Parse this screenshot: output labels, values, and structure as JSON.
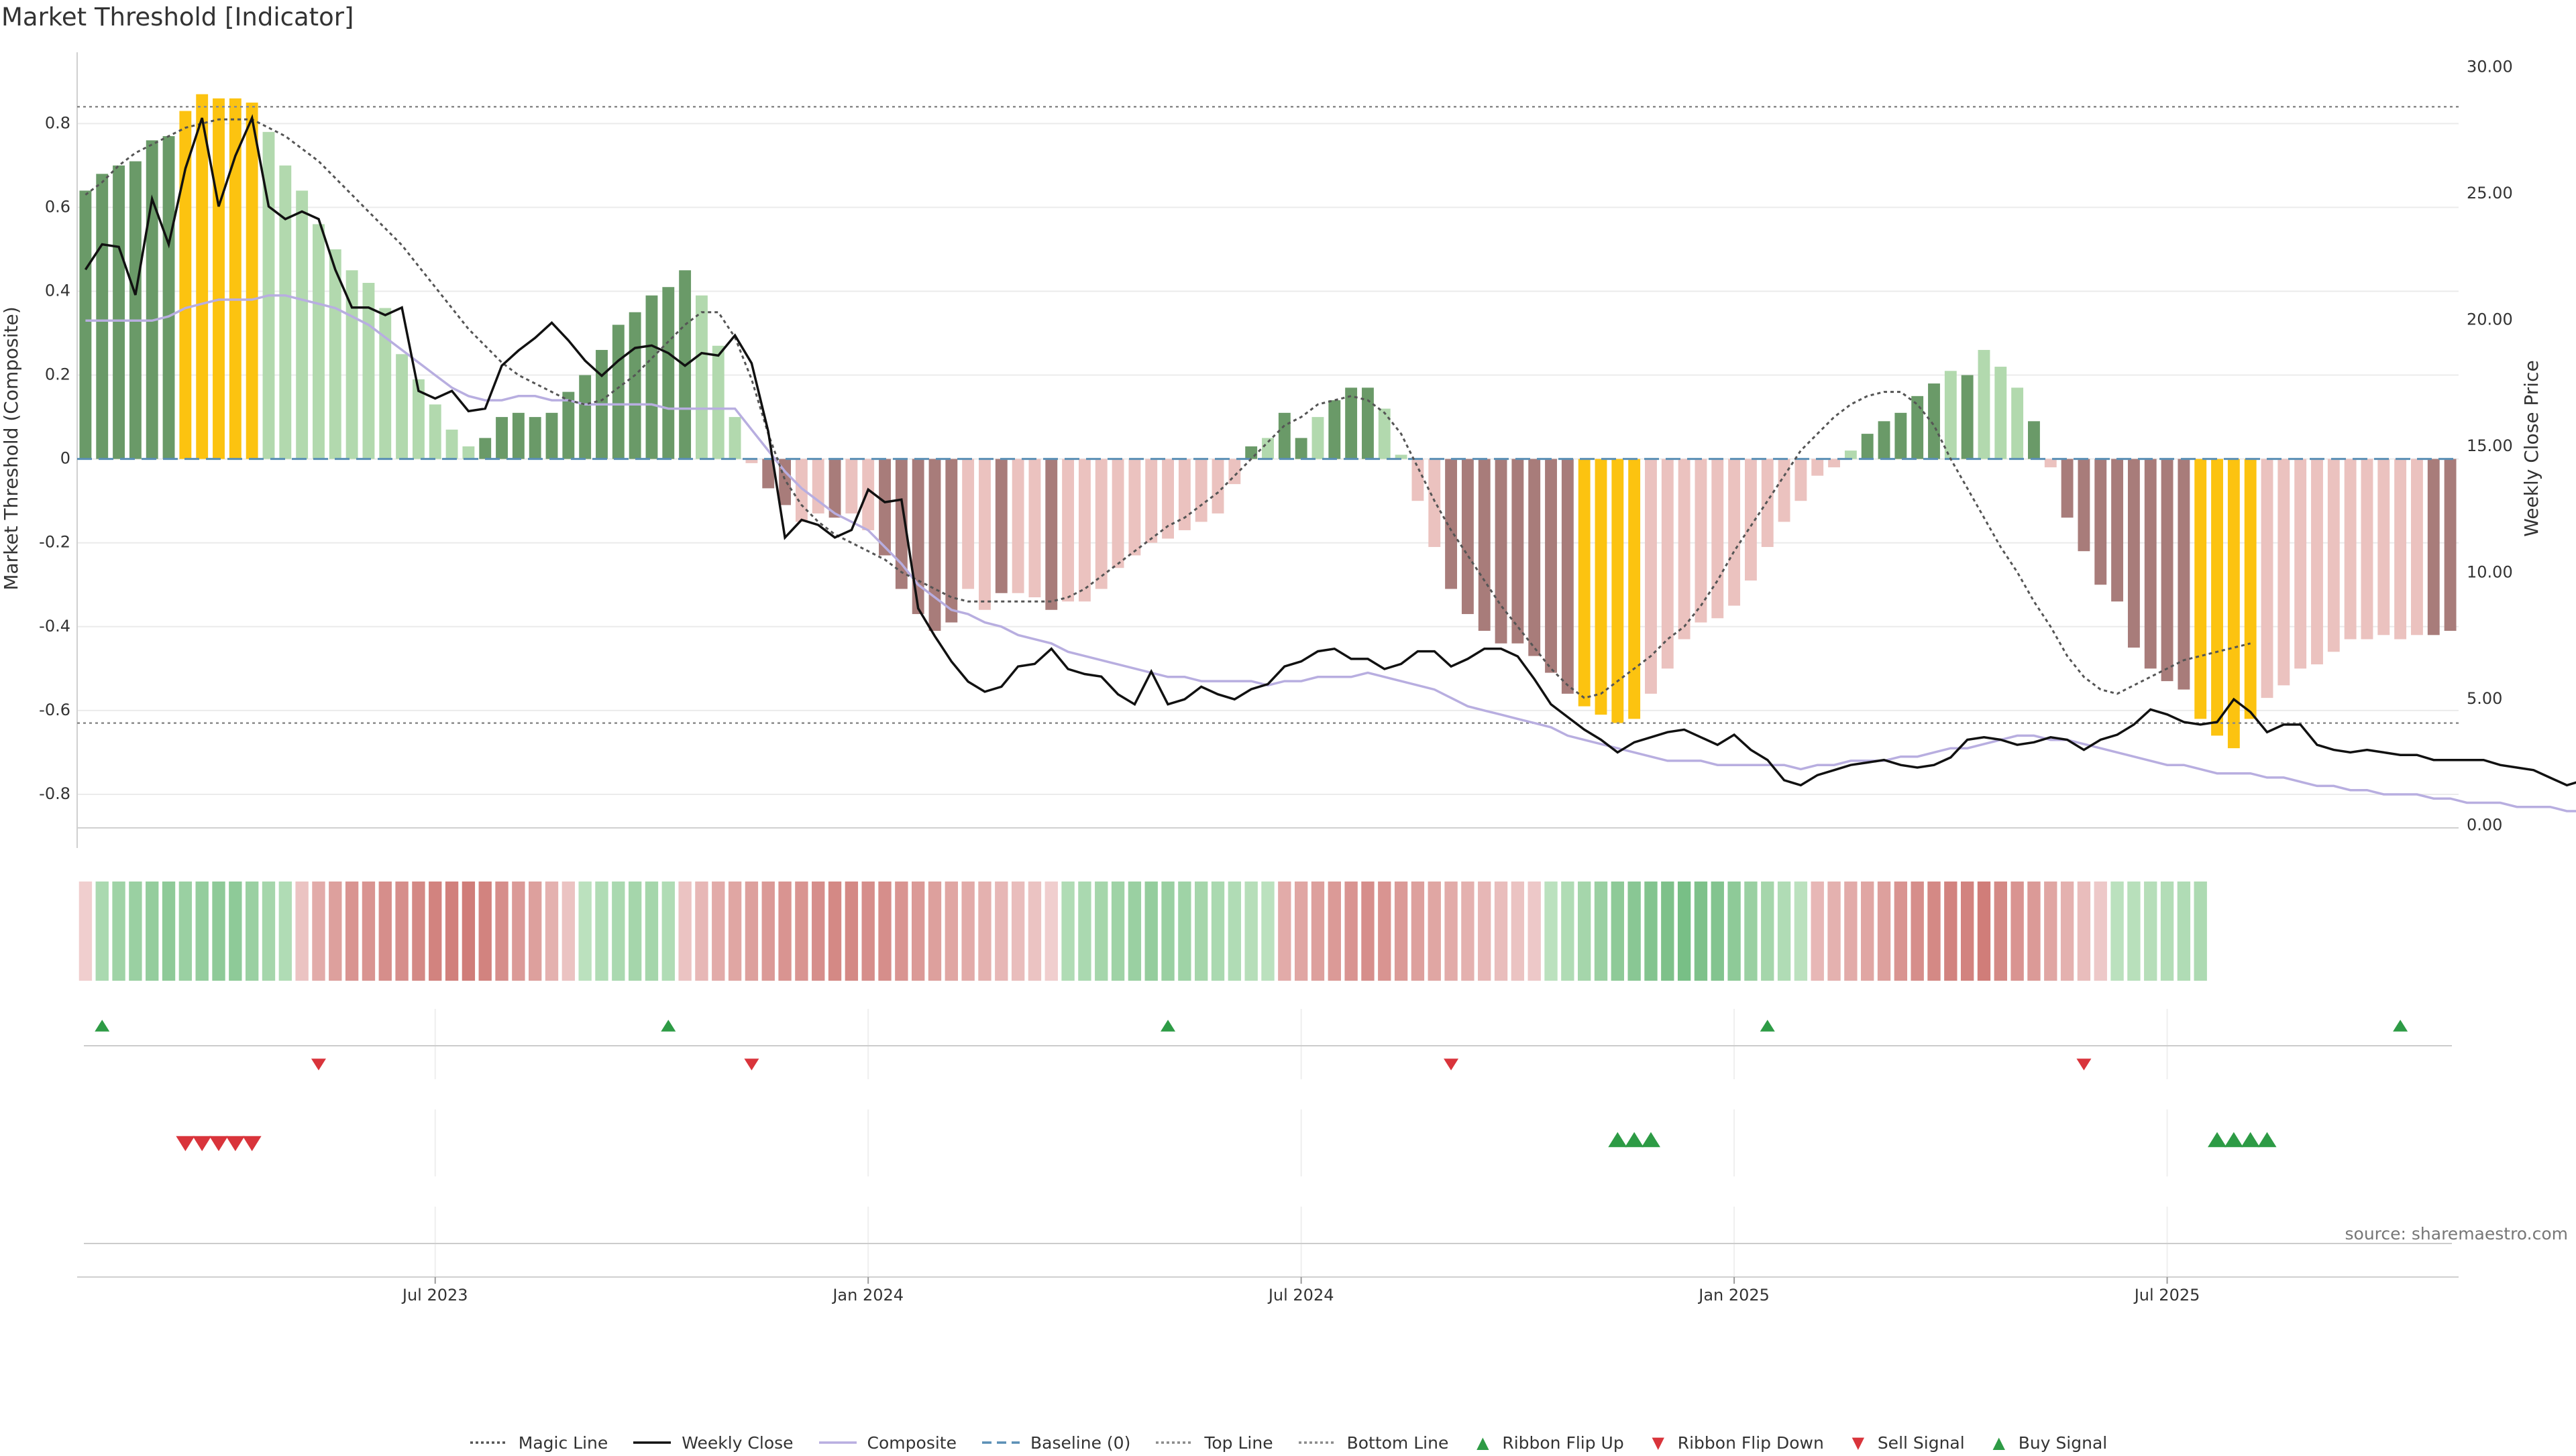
{
  "chart_data": {
    "type": "bar",
    "title": "Market Threshold [Indicator]",
    "ylabel": "Market Threshold (Composite)",
    "y2label": "Weekly Close Price",
    "ylim": [
      -0.92,
      0.97
    ],
    "y2lim": [
      -0.75,
      30.6
    ],
    "yticks": [
      {
        "v": 0.8,
        "l": "0.8"
      },
      {
        "v": 0.6,
        "l": "0.6"
      },
      {
        "v": 0.4,
        "l": "0.4"
      },
      {
        "v": 0.2,
        "l": "0.2"
      },
      {
        "v": 0,
        "l": "0"
      },
      {
        "v": -0.2,
        "l": "-0.2"
      },
      {
        "v": -0.4,
        "l": "-0.4"
      },
      {
        "v": -0.6,
        "l": "-0.6"
      },
      {
        "v": -0.8,
        "l": "-0.8"
      }
    ],
    "y2ticks": [
      {
        "v": 30,
        "l": "30.00"
      },
      {
        "v": 25,
        "l": "25.00"
      },
      {
        "v": 20,
        "l": "20.00"
      },
      {
        "v": 15,
        "l": "15.00"
      },
      {
        "v": 10,
        "l": "10.00"
      },
      {
        "v": 5,
        "l": "5.00"
      },
      {
        "v": 0,
        "l": "0.00"
      }
    ],
    "xticks": [
      {
        "i": 21.5,
        "l": "Jul 2023"
      },
      {
        "i": 47.5,
        "l": "Jan 2024"
      },
      {
        "i": 73.5,
        "l": "Jul 2024"
      },
      {
        "i": 99.5,
        "l": "Jan 2025"
      },
      {
        "i": 125.5,
        "l": "Jul 2025"
      }
    ],
    "top_line": 0.84,
    "bottom_line": -0.63,
    "baseline": 0,
    "colors": {
      "strong_pos": "#6a9a68",
      "weak_pos": "#b2d9ae",
      "strong_neg": "#a87c7a",
      "weak_neg": "#ebc2bf",
      "extreme": "#fcc310",
      "close": "#111111",
      "composite": "#b8aee0",
      "magic": "#555555",
      "baseline": "#5a8fb5",
      "ref": "#8a8a8a",
      "up": "#2d9b45",
      "down": "#d9343b"
    },
    "series": [
      {
        "name": "Composite Bars",
        "kind": "bar",
        "values": [
          0.64,
          0.68,
          0.7,
          0.71,
          0.76,
          0.77,
          0.83,
          0.87,
          0.86,
          0.86,
          0.85,
          0.78,
          0.7,
          0.64,
          0.56,
          0.5,
          0.45,
          0.42,
          0.36,
          0.25,
          0.19,
          0.13,
          0.07,
          0.03,
          0.05,
          0.1,
          0.11,
          0.1,
          0.11,
          0.16,
          0.2,
          0.26,
          0.32,
          0.35,
          0.39,
          0.41,
          0.45,
          0.39,
          0.27,
          0.1,
          -0.01,
          -0.07,
          -0.11,
          -0.15,
          -0.13,
          -0.14,
          -0.13,
          -0.17,
          -0.23,
          -0.31,
          -0.37,
          -0.41,
          -0.39,
          -0.31,
          -0.36,
          -0.32,
          -0.32,
          -0.33,
          -0.36,
          -0.34,
          -0.34,
          -0.31,
          -0.26,
          -0.23,
          -0.2,
          -0.19,
          -0.17,
          -0.15,
          -0.13,
          -0.06,
          0.03,
          0.05,
          0.11,
          0.05,
          0.1,
          0.14,
          0.17,
          0.17,
          0.12,
          0.01,
          -0.1,
          -0.21,
          -0.31,
          -0.37,
          -0.41,
          -0.44,
          -0.44,
          -0.47,
          -0.51,
          -0.56,
          -0.59,
          -0.61,
          -0.63,
          -0.62,
          -0.56,
          -0.5,
          -0.43,
          -0.39,
          -0.38,
          -0.35,
          -0.29,
          -0.21,
          -0.15,
          -0.1,
          -0.04,
          -0.02,
          0.02,
          0.06,
          0.09,
          0.11,
          0.15,
          0.18,
          0.21,
          0.2,
          0.26,
          0.22,
          0.17,
          0.09,
          -0.02,
          -0.14,
          -0.22,
          -0.3,
          -0.34,
          -0.45,
          -0.5,
          -0.53,
          -0.55,
          -0.62,
          -0.66,
          -0.69,
          -0.62,
          -0.57,
          -0.54,
          -0.5,
          -0.49,
          -0.46,
          -0.43,
          -0.43,
          -0.42,
          -0.43,
          -0.42,
          -0.42,
          -0.41
        ]
      },
      {
        "name": "Weekly Close",
        "kind": "line",
        "values": [
          22.0,
          23.0,
          22.9,
          21.0,
          24.8,
          23.0,
          26.0,
          28.0,
          24.5,
          26.5,
          28.0,
          24.5,
          24.0,
          24.3,
          24.0,
          22.0,
          20.5,
          20.5,
          20.2,
          20.5,
          17.2,
          16.9,
          17.2,
          16.4,
          16.5,
          18.2,
          18.8,
          19.3,
          19.9,
          19.2,
          18.4,
          17.8,
          18.4,
          18.9,
          19.0,
          18.7,
          18.2,
          18.7,
          18.6,
          19.4,
          18.3,
          15.6,
          11.4,
          12.1,
          11.9,
          11.4,
          11.7,
          13.3,
          12.8,
          12.9,
          8.6,
          7.5,
          6.5,
          5.7,
          5.3,
          5.5,
          6.3,
          6.4,
          7.0,
          6.2,
          6.0,
          5.9,
          5.2,
          4.8,
          6.1,
          4.8,
          5.0,
          5.5,
          5.2,
          5.0,
          5.4,
          5.6,
          6.3,
          6.5,
          6.9,
          7.0,
          6.6,
          6.6,
          6.2,
          6.4,
          6.9,
          6.9,
          6.3,
          6.6,
          7.0,
          7.0,
          6.7,
          5.8,
          4.8,
          4.3,
          3.8,
          3.4,
          2.9,
          3.3,
          3.5,
          3.7,
          3.8,
          3.5,
          3.2,
          3.6,
          3.0,
          2.6,
          1.8,
          1.6,
          2.0,
          2.2,
          2.4,
          2.5,
          2.6,
          2.4,
          2.3,
          2.4,
          2.7,
          3.4,
          3.5,
          3.4,
          3.2,
          3.3,
          3.5,
          3.4,
          3.0,
          3.4,
          3.6,
          4.0,
          4.6,
          4.4,
          4.1,
          4.0,
          4.1,
          5.0,
          4.5,
          3.7,
          4.0,
          4.0,
          3.2,
          3.0,
          2.9,
          3.0,
          2.9,
          2.8,
          2.8,
          2.6,
          2.6,
          2.6,
          2.6,
          2.4,
          2.3,
          2.2,
          1.9,
          1.6,
          1.8,
          2.0
        ]
      },
      {
        "name": "Composite",
        "kind": "line",
        "values": [
          0.33,
          0.33,
          0.33,
          0.33,
          0.33,
          0.34,
          0.36,
          0.37,
          0.38,
          0.38,
          0.38,
          0.39,
          0.39,
          0.38,
          0.37,
          0.36,
          0.34,
          0.32,
          0.29,
          0.26,
          0.23,
          0.2,
          0.17,
          0.15,
          0.14,
          0.14,
          0.15,
          0.15,
          0.14,
          0.14,
          0.13,
          0.13,
          0.13,
          0.13,
          0.13,
          0.12,
          0.12,
          0.12,
          0.12,
          0.12,
          0.07,
          0.02,
          -0.03,
          -0.07,
          -0.1,
          -0.13,
          -0.15,
          -0.17,
          -0.21,
          -0.25,
          -0.3,
          -0.33,
          -0.36,
          -0.37,
          -0.39,
          -0.4,
          -0.42,
          -0.43,
          -0.44,
          -0.46,
          -0.47,
          -0.48,
          -0.49,
          -0.5,
          -0.51,
          -0.52,
          -0.52,
          -0.53,
          -0.53,
          -0.53,
          -0.53,
          -0.54,
          -0.53,
          -0.53,
          -0.52,
          -0.52,
          -0.52,
          -0.51,
          -0.52,
          -0.53,
          -0.54,
          -0.55,
          -0.57,
          -0.59,
          -0.6,
          -0.61,
          -0.62,
          -0.63,
          -0.64,
          -0.66,
          -0.67,
          -0.68,
          -0.69,
          -0.7,
          -0.71,
          -0.72,
          -0.72,
          -0.72,
          -0.73,
          -0.73,
          -0.73,
          -0.73,
          -0.73,
          -0.74,
          -0.73,
          -0.73,
          -0.72,
          -0.72,
          -0.72,
          -0.71,
          -0.71,
          -0.7,
          -0.69,
          -0.69,
          -0.68,
          -0.67,
          -0.66,
          -0.66,
          -0.67,
          -0.67,
          -0.68,
          -0.69,
          -0.7,
          -0.71,
          -0.72,
          -0.73,
          -0.73,
          -0.74,
          -0.75,
          -0.75,
          -0.75,
          -0.76,
          -0.76,
          -0.77,
          -0.78,
          -0.78,
          -0.79,
          -0.79,
          -0.8,
          -0.8,
          -0.8,
          -0.81,
          -0.81,
          -0.82,
          -0.82,
          -0.82,
          -0.83,
          -0.83,
          -0.83,
          -0.84,
          -0.84,
          -0.85,
          -0.85
        ]
      },
      {
        "name": "Magic Line",
        "kind": "line",
        "values": [
          0.63,
          0.66,
          0.7,
          0.73,
          0.75,
          0.77,
          0.79,
          0.8,
          0.81,
          0.81,
          0.81,
          0.79,
          0.77,
          0.74,
          0.71,
          0.67,
          0.63,
          0.59,
          0.55,
          0.51,
          0.46,
          0.41,
          0.36,
          0.31,
          0.27,
          0.23,
          0.2,
          0.18,
          0.16,
          0.14,
          0.13,
          0.14,
          0.17,
          0.2,
          0.24,
          0.28,
          0.32,
          0.35,
          0.35,
          0.29,
          0.19,
          0.06,
          -0.05,
          -0.11,
          -0.15,
          -0.18,
          -0.2,
          -0.22,
          -0.24,
          -0.27,
          -0.29,
          -0.31,
          -0.33,
          -0.34,
          -0.34,
          -0.34,
          -0.34,
          -0.34,
          -0.34,
          -0.33,
          -0.31,
          -0.28,
          -0.25,
          -0.22,
          -0.19,
          -0.16,
          -0.14,
          -0.11,
          -0.08,
          -0.04,
          0.0,
          0.04,
          0.08,
          0.1,
          0.13,
          0.14,
          0.15,
          0.14,
          0.11,
          0.06,
          -0.02,
          -0.1,
          -0.17,
          -0.23,
          -0.29,
          -0.35,
          -0.4,
          -0.45,
          -0.5,
          -0.54,
          -0.57,
          -0.56,
          -0.53,
          -0.5,
          -0.47,
          -0.43,
          -0.4,
          -0.35,
          -0.29,
          -0.22,
          -0.16,
          -0.1,
          -0.04,
          0.02,
          0.06,
          0.1,
          0.13,
          0.15,
          0.16,
          0.16,
          0.13,
          0.08,
          0.0,
          -0.07,
          -0.14,
          -0.21,
          -0.27,
          -0.34,
          -0.4,
          -0.47,
          -0.52,
          -0.55,
          -0.56,
          -0.54,
          -0.52,
          -0.5,
          -0.48,
          -0.47,
          -0.46,
          -0.45,
          -0.44
        ]
      },
      {
        "name": "Ribbon",
        "kind": "ribbon",
        "values": [
          -0.05,
          0.3,
          0.4,
          0.45,
          0.5,
          0.55,
          0.45,
          0.5,
          0.55,
          0.55,
          0.45,
          0.35,
          0.25,
          -0.15,
          -0.35,
          -0.45,
          -0.55,
          -0.55,
          -0.6,
          -0.6,
          -0.65,
          -0.7,
          -0.72,
          -0.75,
          -0.7,
          -0.6,
          -0.5,
          -0.45,
          -0.3,
          -0.15,
          0.15,
          0.25,
          0.3,
          0.35,
          0.35,
          0.25,
          -0.15,
          -0.25,
          -0.35,
          -0.4,
          -0.45,
          -0.5,
          -0.55,
          -0.55,
          -0.6,
          -0.65,
          -0.65,
          -0.6,
          -0.6,
          -0.55,
          -0.5,
          -0.45,
          -0.4,
          -0.35,
          -0.3,
          -0.25,
          -0.2,
          -0.15,
          -0.05,
          0.25,
          0.3,
          0.35,
          0.4,
          0.45,
          0.5,
          0.45,
          0.4,
          0.35,
          0.3,
          0.25,
          0.2,
          0.15,
          -0.35,
          -0.4,
          -0.45,
          -0.5,
          -0.55,
          -0.6,
          -0.55,
          -0.5,
          -0.45,
          -0.4,
          -0.35,
          -0.3,
          -0.25,
          -0.2,
          -0.15,
          -0.1,
          0.15,
          0.25,
          0.35,
          0.45,
          0.55,
          0.6,
          0.65,
          0.7,
          0.75,
          0.7,
          0.65,
          0.55,
          0.45,
          0.35,
          0.25,
          0.15,
          -0.25,
          -0.3,
          -0.35,
          -0.4,
          -0.45,
          -0.55,
          -0.6,
          -0.65,
          -0.7,
          -0.7,
          -0.75,
          -0.65,
          -0.55,
          -0.5,
          -0.4,
          -0.3,
          -0.2,
          -0.1,
          0.15,
          0.18,
          0.2,
          0.22,
          0.25,
          0.28
        ]
      }
    ],
    "ribbon_flip_up": [
      1,
      35,
      65,
      101,
      139
    ],
    "ribbon_flip_down": [
      14,
      40,
      82,
      120
    ],
    "sell_signals": [
      6,
      7,
      8,
      9,
      10
    ],
    "buy_signals": [
      92,
      93,
      94,
      128,
      129,
      130,
      131
    ],
    "source": "source: sharemaestro.com",
    "legend": [
      {
        "label": "Magic Line",
        "kind": "dotted",
        "color": "#555555"
      },
      {
        "label": "Weekly Close",
        "kind": "solid",
        "color": "#111111"
      },
      {
        "label": "Composite",
        "kind": "solid",
        "color": "#b8aee0"
      },
      {
        "label": "Baseline (0)",
        "kind": "dashed",
        "color": "#5a8fb5"
      },
      {
        "label": "Top Line",
        "kind": "dotted",
        "color": "#8a8a8a"
      },
      {
        "label": "Bottom Line",
        "kind": "dotted",
        "color": "#8a8a8a"
      },
      {
        "label": "Ribbon Flip Up",
        "kind": "up",
        "color": "#2d9b45"
      },
      {
        "label": "Ribbon Flip Down",
        "kind": "down",
        "color": "#d9343b"
      },
      {
        "label": "Sell Signal",
        "kind": "down",
        "color": "#d9343b"
      },
      {
        "label": "Buy Signal",
        "kind": "up",
        "color": "#2d9b45"
      }
    ]
  }
}
